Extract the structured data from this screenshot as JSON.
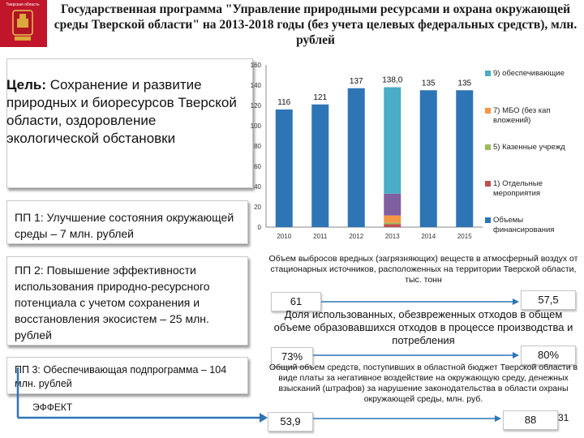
{
  "header": {
    "crest_caption": "Тверская область",
    "title": "Государственная программа \"Управление природными ресурсами и охрана окружающей среды Тверской области\" на 2013-2018 годы (без учета целевых федеральных средств), млн. рублей"
  },
  "goal": {
    "label": "Цель:",
    "text": " Сохранение и развитие природных и биоресурсов Тверской области, оздоровление экологической обстановки"
  },
  "subprograms": [
    {
      "text": "ПП 1: Улучшение состояния окружающей среды – 7 млн. рублей"
    },
    {
      "text": "ПП 2: Повышение эффективности использования природно-ресурсного потенциала с учетом сохранения и восстановления экосистем – 25 млн. рублей"
    },
    {
      "text": "ПП 3: Обеспечивающая подпрограмма – 104 млн. рублей"
    }
  ],
  "effect_label": "ЭФФЕКТ",
  "chart_data": {
    "type": "bar",
    "stacked": true,
    "categories": [
      "2010",
      "2011",
      "2012",
      "2013",
      "2014",
      "2015"
    ],
    "ylim": [
      0,
      160
    ],
    "yticks": [
      0,
      20,
      40,
      60,
      80,
      100,
      120,
      140,
      160
    ],
    "data_labels": [
      "116",
      "121",
      "137",
      "138,0",
      "135",
      "135"
    ],
    "series": [
      {
        "name": "Объемы финансирования",
        "color": "#2e75b6",
        "values": [
          116,
          121,
          137,
          0,
          135,
          135
        ]
      },
      {
        "name": "1) Отдельные мероприятия",
        "color": "#c0504d",
        "values": [
          0,
          0,
          0,
          3,
          0,
          0
        ]
      },
      {
        "name": "5) Казенные учрежд",
        "color": "#9bbb59",
        "values": [
          0,
          0,
          0,
          1.5,
          0,
          0
        ]
      },
      {
        "name": "7) МБО (без кап вложений)",
        "color": "#f79646",
        "values": [
          0,
          0,
          0,
          7,
          0,
          0
        ]
      },
      {
        "name": "",
        "color": "#7f5f9f",
        "values": [
          0,
          0,
          0,
          21.5,
          0,
          0
        ]
      },
      {
        "name": "9) обеспечивающие",
        "color": "#4bacc6",
        "values": [
          0,
          0,
          0,
          105,
          0,
          0
        ]
      }
    ],
    "legend_position": "right",
    "grid": false
  },
  "indicators": [
    {
      "title": "Объем выбросов вредных (загрязняющих) веществ в атмосферный воздух от стационарных источников, расположенных на территории Тверской области, тыс. тонн",
      "start": "61",
      "end": "57,5"
    },
    {
      "title": "Доля использованных, обезвреженных отходов в общем объеме образовавшихся отходов в процессе производства и потребления",
      "start": "73%",
      "end": "80%"
    },
    {
      "title": "Общий объем средств, поступивших в областной бюджет Тверской области в виде платы за негативное воздействие на окружающую среду, денежных взысканий (штрафов) за нарушение законодательства в области охраны окружающей среды, млн. руб.",
      "start": "53,9",
      "end": "88"
    }
  ],
  "slide_number": "31",
  "colors": {
    "header_red": "#c0152a",
    "arrow_blue": "#2e75b6"
  }
}
